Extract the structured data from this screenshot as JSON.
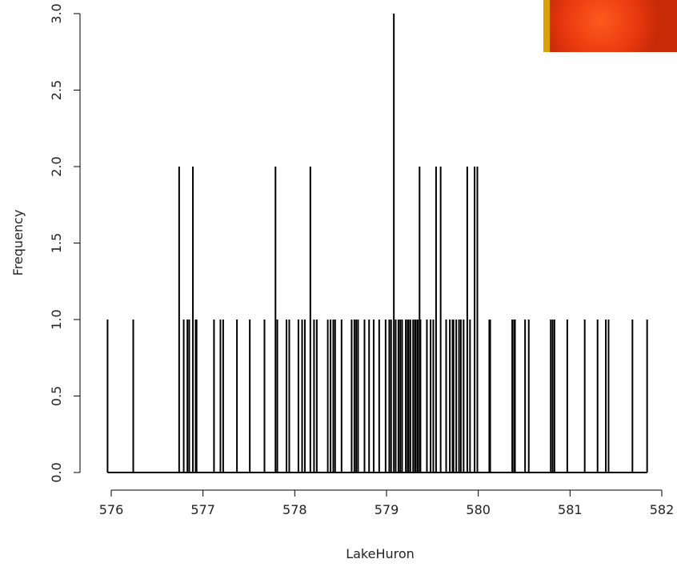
{
  "chart_data": {
    "type": "spike",
    "x_label": "LakeHuron",
    "y_label": "Frequency",
    "color": "#000000",
    "x": [
      575.96,
      576.24,
      576.74,
      576.79,
      576.83,
      576.85,
      576.89,
      576.92,
      576.93,
      577.12,
      577.19,
      577.22,
      577.37,
      577.51,
      577.67,
      577.79,
      577.81,
      577.91,
      577.94,
      578.04,
      578.08,
      578.11,
      578.17,
      578.21,
      578.24,
      578.36,
      578.39,
      578.42,
      578.44,
      578.51,
      578.62,
      578.65,
      578.67,
      578.69,
      578.76,
      578.81,
      578.86,
      578.92,
      578.99,
      579.03,
      579.05,
      579.08,
      579.1,
      579.13,
      579.15,
      579.17,
      579.21,
      579.23,
      579.24,
      579.26,
      579.29,
      579.31,
      579.32,
      579.34,
      579.36,
      579.37,
      579.44,
      579.48,
      579.51,
      579.54,
      579.59,
      579.65,
      579.69,
      579.72,
      579.73,
      579.76,
      579.79,
      579.81,
      579.84,
      579.88,
      579.91,
      579.96,
      579.99,
      580.12,
      580.13,
      580.37,
      580.39,
      580.4,
      580.51,
      580.55,
      580.79,
      580.81,
      580.83,
      580.97,
      581.16,
      581.3,
      581.39,
      581.42,
      581.68,
      581.84
    ],
    "values": [
      1,
      1,
      2,
      1,
      1,
      1,
      2,
      1,
      1,
      1,
      1,
      1,
      1,
      1,
      1,
      2,
      1,
      1,
      1,
      1,
      1,
      1,
      2,
      1,
      1,
      1,
      1,
      1,
      1,
      1,
      1,
      1,
      1,
      1,
      1,
      1,
      1,
      1,
      1,
      1,
      1,
      3,
      1,
      1,
      1,
      1,
      1,
      1,
      1,
      1,
      1,
      1,
      1,
      1,
      2,
      1,
      1,
      1,
      1,
      2,
      2,
      1,
      1,
      1,
      1,
      1,
      1,
      1,
      1,
      2,
      1,
      2,
      2,
      1,
      1,
      1,
      1,
      1,
      1,
      1,
      1,
      1,
      1,
      1,
      1,
      1,
      1,
      1,
      1,
      1
    ],
    "xlim": [
      576,
      582
    ],
    "xticks": [
      576,
      577,
      578,
      579,
      580,
      581,
      582
    ],
    "ylim": [
      0,
      3
    ],
    "yticks": [
      {
        "value": 0,
        "label": "0.0"
      },
      0.5,
      {
        "value": 1,
        "label": "1.0"
      },
      1.5,
      {
        "value": 2,
        "label": "2.0"
      },
      2.5,
      {
        "value": 3,
        "label": "3.0"
      }
    ]
  }
}
